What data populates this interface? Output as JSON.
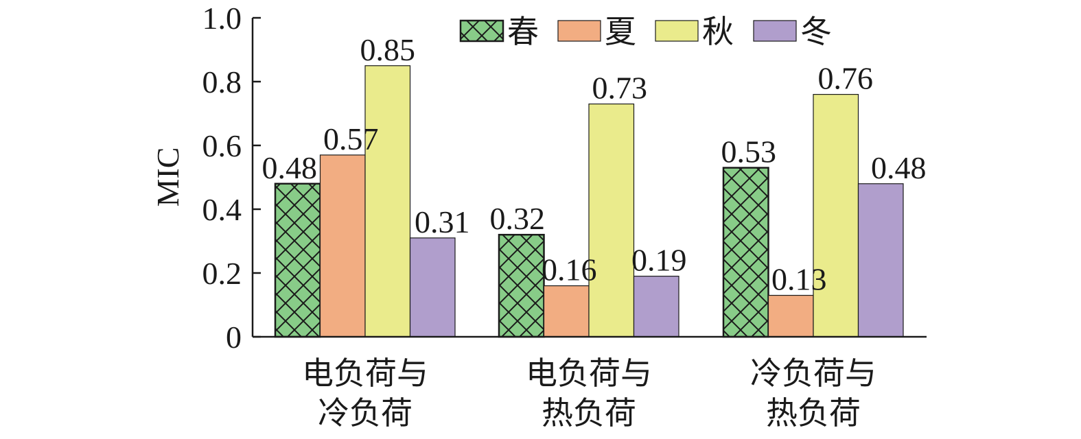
{
  "chart_data": {
    "type": "bar",
    "title": "",
    "xlabel": "",
    "ylabel": "MIC",
    "ylim": [
      0,
      1.0
    ],
    "yticks": [
      "0",
      "0.2",
      "0.4",
      "0.6",
      "0.8",
      "1.0"
    ],
    "categories": [
      [
        "电负荷与",
        "冷负荷"
      ],
      [
        "电负荷与",
        "热负荷"
      ],
      [
        "冷负荷与",
        "热负荷"
      ]
    ],
    "series": [
      {
        "name": "春",
        "values": [
          0.48,
          0.32,
          0.53
        ],
        "labels": [
          "0.48",
          "0.32",
          "0.53"
        ],
        "color": "#88cc88",
        "pattern": "crosshatch"
      },
      {
        "name": "夏",
        "values": [
          0.57,
          0.16,
          0.13
        ],
        "labels": [
          "0.57",
          "0.16",
          "0.13"
        ],
        "color": "#f2ad82"
      },
      {
        "name": "秋",
        "values": [
          0.85,
          0.73,
          0.76
        ],
        "labels": [
          "0.85",
          "0.73",
          "0.76"
        ],
        "color": "#eaeb8c"
      },
      {
        "name": "冬",
        "values": [
          0.31,
          0.19,
          0.48
        ],
        "labels": [
          "0.31",
          "0.19",
          "0.48"
        ],
        "color": "#b09ecc"
      }
    ],
    "legend_position": "top-right",
    "grid": false
  }
}
